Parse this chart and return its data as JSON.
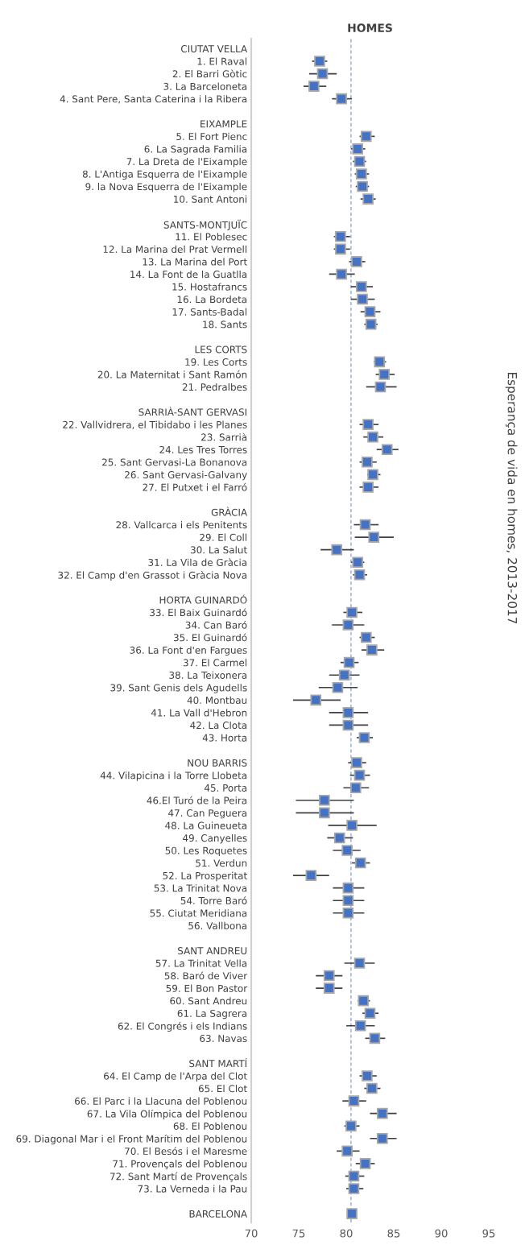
{
  "chart_data": {
    "type": "scatter",
    "orientation": "horizontal",
    "title": "HOMES",
    "ylabel": "Esperança de vida en homes, 2013-2017",
    "categories": [
      "CIUTAT VELLA",
      "1. El Raval",
      "2. El Barri Gòtic",
      "3. La Barceloneta",
      "4. Sant Pere, Santa Caterina i la Ribera",
      null,
      "EIXAMPLE",
      "5. El Fort Pienc",
      "6. La Sagrada Familia",
      "7. La Dreta de l'Eixample",
      "8. L'Antiga Esquerra de l'Eixample",
      "9. la Nova Esquerra de l'Eixample",
      "10. Sant Antoni",
      null,
      "SANTS-MONTJUÏC",
      "11. El Poblesec",
      "12. La Marina del Prat Vermell",
      "13. La Marina del Port",
      "14. La Font de la Guatlla",
      "15. Hostafrancs",
      "16. La Bordeta",
      "17. Sants-Badal",
      "18. Sants",
      null,
      "LES CORTS",
      "19. Les Corts",
      "20. La Maternitat i Sant Ramón",
      "21. Pedralbes",
      null,
      "SARRIÀ-SANT GERVASI",
      "22. Vallvidrera, el Tibidabo i les Planes",
      "23. Sarrià",
      "24. Les Tres Torres",
      "25. Sant Gervasi-La Bonanova",
      "26. Sant Gervasi-Galvany",
      "27. El Putxet i el Farró",
      null,
      "GRÀCIA",
      "28. Vallcarca i els Penitents",
      "29. El Coll",
      "30. La Salut",
      "31. La Vila de Gràcia",
      "32. El Camp d'en Grassot i Gràcia Nova",
      null,
      "HORTA GUINARDÓ",
      "33. El Baix Guinardó",
      "34. Can Baró",
      "35. El Guinardó",
      "36. La Font d'en Fargues",
      "37. El Carmel",
      "38. La Teixonera",
      "39. Sant Genis dels Agudells",
      "40. Montbau",
      "41. La Vall d'Hebron",
      "42. La Clota",
      "43. Horta",
      null,
      "NOU BARRIS",
      "44. Vilapicina i la Torre Llobeta",
      "45. Porta",
      "46.El Turó de la Peira",
      "47. Can Peguera",
      "48. La Guineueta",
      "49. Canyelles",
      "50. Les Roquetes",
      "51. Verdun",
      "52. La Prosperitat",
      "53. La Trinitat Nova",
      "54. Torre Baró",
      "55. Ciutat Meridiana",
      "56. Vallbona",
      null,
      "SANT ANDREU",
      "57. La Trinitat Vella",
      "58. Baró de Viver",
      "59. El Bon Pastor",
      "60. Sant Andreu",
      "61. La Sagrera",
      "62. El Congrés i els Indians",
      "63. Navas",
      null,
      "SANT MARTÍ",
      "64. El Camp de l'Arpa del Clot",
      "65. El Clot",
      "66. El Parc i la Llacuna del Poblenou",
      "67. La Vila Olímpica del Poblenou",
      "68. El Poblenou",
      "69. Diagonal Mar i el Front Marítim del Poblenou",
      "70. El Besós i el Maresme",
      "71. Provençals del Poblenou",
      "72. Sant Martí de Provençals",
      "73. La Verneda i la Pau",
      null,
      "BARCELONA"
    ],
    "series": [
      {
        "color": "#4472c4",
        "values": [
          null,
          77.2,
          77.5,
          76.6,
          79.5,
          null,
          null,
          82.1,
          81.2,
          81.4,
          81.6,
          81.7,
          82.3,
          null,
          null,
          79.4,
          79.4,
          81.1,
          79.5,
          81.6,
          81.7,
          82.5,
          82.6,
          null,
          null,
          83.5,
          84.0,
          83.6,
          null,
          null,
          82.3,
          82.8,
          84.3,
          82.2,
          82.8,
          82.3,
          null,
          null,
          82.0,
          82.9,
          79.0,
          81.2,
          81.4,
          null,
          null,
          80.6,
          80.2,
          82.1,
          82.7,
          80.3,
          79.8,
          79.1,
          76.8,
          80.2,
          80.2,
          81.9,
          null,
          81.1,
          81.4,
          81.0,
          77.7,
          77.7,
          80.6,
          79.3,
          80.1,
          81.5,
          76.3,
          80.2,
          80.2,
          80.2,
          null,
          null,
          null,
          81.4,
          78.2,
          78.2,
          81.8,
          82.5,
          81.5,
          83.0,
          null,
          null,
          82.2,
          82.7,
          80.8,
          83.8,
          80.5,
          83.8,
          80.1,
          82.0,
          80.8,
          80.8,
          null,
          80.6
        ],
        "errors": [
          null,
          [
            76.4,
            78.0
          ],
          [
            76.1,
            79.0
          ],
          [
            75.5,
            77.9
          ],
          [
            78.5,
            80.6
          ],
          null,
          null,
          [
            81.4,
            83.0
          ],
          [
            80.5,
            82.0
          ],
          [
            80.7,
            82.1
          ],
          [
            80.9,
            82.4
          ],
          [
            81.0,
            82.4
          ],
          [
            81.5,
            83.1
          ],
          null,
          null,
          [
            78.7,
            80.4
          ],
          [
            78.7,
            80.4
          ],
          [
            80.3,
            82.0
          ],
          [
            78.2,
            80.9
          ],
          [
            80.5,
            82.8
          ],
          [
            80.5,
            83.0
          ],
          [
            81.5,
            83.6
          ],
          [
            81.9,
            83.3
          ],
          null,
          null,
          [
            82.9,
            84.2
          ],
          [
            83.1,
            85.1
          ],
          [
            82.1,
            85.3
          ],
          null,
          null,
          [
            81.4,
            83.4
          ],
          [
            81.8,
            83.9
          ],
          [
            83.2,
            85.5
          ],
          [
            81.4,
            83.2
          ],
          [
            82.2,
            83.6
          ],
          [
            81.4,
            83.4
          ],
          null,
          null,
          [
            80.8,
            83.4
          ],
          [
            80.9,
            85.0
          ],
          [
            77.3,
            80.8
          ],
          [
            80.5,
            81.9
          ],
          [
            80.7,
            82.2
          ],
          null,
          null,
          [
            79.7,
            81.7
          ],
          [
            78.5,
            81.9
          ],
          [
            81.4,
            83.0
          ],
          [
            81.6,
            84.0
          ],
          [
            79.4,
            81.3
          ],
          [
            78.2,
            81.4
          ],
          [
            77.1,
            81.2
          ],
          [
            74.4,
            79.4
          ],
          [
            78.2,
            82.3
          ],
          [
            78.2,
            82.3
          ],
          [
            81.1,
            82.8
          ],
          null,
          [
            80.2,
            82.1
          ],
          [
            80.4,
            82.5
          ],
          [
            79.7,
            82.4
          ],
          [
            74.7,
            80.8
          ],
          [
            74.7,
            80.8
          ],
          [
            78.1,
            83.2
          ],
          [
            78.0,
            80.7
          ],
          [
            78.6,
            81.5
          ],
          [
            80.6,
            82.5
          ],
          [
            74.4,
            78.2
          ],
          [
            78.6,
            81.9
          ],
          [
            78.6,
            81.9
          ],
          [
            78.6,
            81.9
          ],
          null,
          null,
          null,
          [
            79.8,
            83.0
          ],
          [
            76.8,
            79.6
          ],
          [
            76.8,
            79.6
          ],
          [
            81.2,
            82.5
          ],
          [
            81.7,
            83.4
          ],
          [
            80.0,
            83.0
          ],
          [
            82.0,
            84.1
          ],
          null,
          null,
          [
            81.4,
            83.2
          ],
          [
            81.9,
            83.6
          ],
          [
            79.6,
            82.1
          ],
          [
            82.5,
            85.3
          ],
          [
            79.8,
            81.4
          ],
          [
            82.5,
            85.3
          ],
          [
            79.0,
            81.4
          ],
          [
            81.0,
            83.0
          ],
          [
            79.9,
            81.9
          ],
          [
            80.0,
            81.8
          ],
          null,
          null
        ]
      }
    ],
    "xlim": [
      70,
      95
    ],
    "xticks": [
      70,
      75,
      80,
      85,
      90,
      95
    ],
    "marker": "square",
    "grid": false,
    "legend": false,
    "ref_lines": [
      {
        "axis": "x",
        "value": 80.5,
        "color": "#8faadc",
        "line_style": "dashed"
      }
    ]
  }
}
